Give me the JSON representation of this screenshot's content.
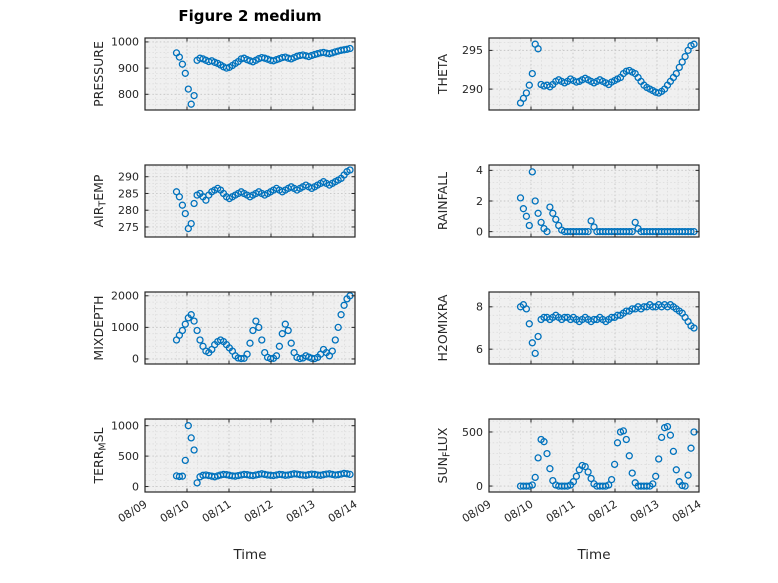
{
  "figure": {
    "title": "Figure 2 medium",
    "xlabel": "Time",
    "marker": "open-circle",
    "accent_color": "#0072BD",
    "text_color": "#262626",
    "grid_style": "dotted"
  },
  "x_axis": {
    "label": "Time",
    "range": [
      0,
      5
    ],
    "tick_labels": [
      "08/09",
      "08/10",
      "08/11",
      "08/12",
      "08/13",
      "08/14"
    ],
    "tick_values": [
      0,
      1,
      2,
      3,
      4,
      5
    ],
    "time_days_since_08_09": [
      0.75,
      0.82,
      0.89,
      0.96,
      1.03,
      1.1,
      1.17,
      1.24,
      1.31,
      1.38,
      1.45,
      1.52,
      1.59,
      1.66,
      1.73,
      1.8,
      1.87,
      1.94,
      2.01,
      2.08,
      2.15,
      2.22,
      2.29,
      2.36,
      2.43,
      2.5,
      2.57,
      2.64,
      2.71,
      2.78,
      2.85,
      2.92,
      2.99,
      3.06,
      3.13,
      3.2,
      3.27,
      3.34,
      3.41,
      3.48,
      3.55,
      3.62,
      3.69,
      3.76,
      3.83,
      3.9,
      3.97,
      4.04,
      4.11,
      4.18,
      4.25,
      4.32,
      4.39,
      4.46,
      4.53,
      4.6,
      4.67,
      4.74,
      4.81,
      4.88
    ]
  },
  "chart_data": [
    {
      "id": "pressure",
      "name": "PRESSURE",
      "type": "scatter",
      "col": 0,
      "row": 0,
      "ylabel_parts": [
        {
          "t": "PRESSURE"
        }
      ],
      "yticks": [
        800,
        900,
        1000
      ],
      "ylim": [
        740,
        1015
      ],
      "values": [
        958,
        942,
        915,
        880,
        820,
        762,
        795,
        930,
        938,
        935,
        930,
        925,
        928,
        922,
        918,
        912,
        905,
        900,
        903,
        910,
        918,
        925,
        935,
        938,
        932,
        928,
        924,
        930,
        936,
        940,
        938,
        934,
        930,
        928,
        932,
        936,
        940,
        942,
        938,
        935,
        940,
        945,
        948,
        950,
        947,
        944,
        948,
        952,
        955,
        958,
        960,
        957,
        955,
        958,
        962,
        965,
        968,
        970,
        972,
        975
      ]
    },
    {
      "id": "air-temp",
      "name": "AIR_TEMP",
      "type": "scatter",
      "col": 0,
      "row": 1,
      "ylabel_parts": [
        {
          "t": "AIR"
        },
        {
          "t": "T",
          "sub": true
        },
        {
          "t": "EMP"
        }
      ],
      "yticks": [
        275,
        280,
        285,
        290
      ],
      "ylim": [
        272,
        293.5
      ],
      "values": [
        285.5,
        284.0,
        281.5,
        279.0,
        274.5,
        276.0,
        282.0,
        284.5,
        285.0,
        284.0,
        283.0,
        284.5,
        285.5,
        286.0,
        286.5,
        286.0,
        285.0,
        284.0,
        283.5,
        284.0,
        284.5,
        285.0,
        285.5,
        285.0,
        284.5,
        284.0,
        284.5,
        285.0,
        285.5,
        285.0,
        284.5,
        285.0,
        285.5,
        286.0,
        286.5,
        286.0,
        285.5,
        286.0,
        286.5,
        287.0,
        286.5,
        286.0,
        286.5,
        287.0,
        287.5,
        287.0,
        286.5,
        287.0,
        287.5,
        288.0,
        288.5,
        288.0,
        287.5,
        288.0,
        288.5,
        289.0,
        289.5,
        290.5,
        291.5,
        292.0
      ]
    },
    {
      "id": "mixdepth",
      "name": "MIXDEPTH",
      "type": "scatter",
      "col": 0,
      "row": 2,
      "ylabel_parts": [
        {
          "t": "MIXDEPTH"
        }
      ],
      "yticks": [
        0,
        1000,
        2000
      ],
      "ylim": [
        -160,
        2120
      ],
      "values": [
        600,
        750,
        900,
        1100,
        1300,
        1400,
        1200,
        900,
        600,
        400,
        250,
        200,
        300,
        450,
        550,
        600,
        550,
        450,
        350,
        250,
        100,
        30,
        10,
        20,
        150,
        500,
        900,
        1200,
        1000,
        600,
        200,
        50,
        10,
        20,
        100,
        400,
        800,
        1100,
        900,
        500,
        200,
        50,
        10,
        30,
        100,
        60,
        20,
        10,
        50,
        150,
        300,
        200,
        100,
        250,
        600,
        1000,
        1400,
        1700,
        1900,
        2000
      ]
    },
    {
      "id": "terr-msl",
      "name": "TERR_MSL",
      "type": "scatter",
      "col": 0,
      "row": 3,
      "ylabel_parts": [
        {
          "t": "TERR"
        },
        {
          "t": "M",
          "sub": true
        },
        {
          "t": "SL"
        }
      ],
      "yticks": [
        0,
        500,
        1000
      ],
      "ylim": [
        -90,
        1110
      ],
      "values": [
        175,
        165,
        170,
        430,
        1000,
        800,
        600,
        60,
        160,
        185,
        190,
        180,
        170,
        160,
        175,
        190,
        200,
        195,
        185,
        175,
        170,
        180,
        190,
        200,
        195,
        185,
        180,
        190,
        200,
        210,
        200,
        190,
        185,
        180,
        190,
        200,
        195,
        185,
        190,
        200,
        210,
        205,
        195,
        190,
        185,
        195,
        205,
        200,
        190,
        185,
        195,
        205,
        210,
        200,
        190,
        195,
        205,
        215,
        210,
        200
      ]
    },
    {
      "id": "theta",
      "name": "THETA",
      "type": "scatter",
      "col": 1,
      "row": 0,
      "ylabel_parts": [
        {
          "t": "THETA"
        }
      ],
      "yticks": [
        290,
        295
      ],
      "ylim": [
        287.3,
        296.6
      ],
      "values": [
        288.2,
        288.8,
        289.5,
        290.5,
        292.0,
        295.8,
        295.2,
        290.6,
        290.4,
        290.5,
        290.3,
        290.6,
        291.0,
        291.2,
        291.0,
        290.8,
        291.0,
        291.3,
        291.1,
        290.9,
        291.0,
        291.2,
        291.4,
        291.2,
        291.0,
        290.8,
        291.0,
        291.2,
        291.0,
        290.8,
        290.6,
        290.9,
        291.1,
        291.3,
        291.5,
        292.0,
        292.3,
        292.4,
        292.2,
        292.0,
        291.5,
        291.0,
        290.5,
        290.2,
        290.0,
        289.8,
        289.6,
        289.5,
        289.7,
        290.0,
        290.5,
        291.0,
        291.5,
        292.0,
        292.8,
        293.5,
        294.2,
        295.0,
        295.6,
        295.8
      ]
    },
    {
      "id": "rainfall",
      "name": "RAINFALL",
      "type": "scatter",
      "col": 1,
      "row": 1,
      "yticks": [
        0,
        2,
        4
      ],
      "ylim": [
        -0.35,
        4.35
      ],
      "ylabel_parts": [
        {
          "t": "RAINFALL"
        }
      ],
      "values": [
        2.2,
        1.5,
        1.0,
        0.4,
        3.9,
        2.0,
        1.2,
        0.6,
        0.2,
        0,
        1.6,
        1.2,
        0.8,
        0.4,
        0.1,
        0,
        0,
        0,
        0,
        0,
        0,
        0,
        0,
        0,
        0.7,
        0.3,
        0,
        0,
        0,
        0,
        0,
        0,
        0,
        0,
        0,
        0,
        0,
        0,
        0,
        0.6,
        0.2,
        0,
        0,
        0,
        0,
        0,
        0,
        0,
        0,
        0,
        0,
        0,
        0,
        0,
        0,
        0,
        0,
        0,
        0,
        0
      ]
    },
    {
      "id": "h2omixra",
      "name": "H2OMIXRA",
      "type": "scatter",
      "col": 1,
      "row": 2,
      "ylabel_parts": [
        {
          "t": "H2OMIXRA"
        }
      ],
      "yticks": [
        6,
        8
      ],
      "ylim": [
        5.3,
        8.7
      ],
      "values": [
        8.0,
        8.1,
        7.9,
        7.2,
        6.3,
        5.8,
        6.6,
        7.4,
        7.5,
        7.5,
        7.4,
        7.5,
        7.6,
        7.5,
        7.4,
        7.5,
        7.5,
        7.4,
        7.5,
        7.4,
        7.3,
        7.4,
        7.5,
        7.4,
        7.3,
        7.4,
        7.4,
        7.5,
        7.4,
        7.3,
        7.4,
        7.5,
        7.5,
        7.6,
        7.6,
        7.7,
        7.8,
        7.8,
        7.9,
        7.9,
        8.0,
        7.9,
        8.0,
        8.0,
        8.1,
        8.0,
        8.0,
        8.1,
        8.0,
        8.1,
        8.0,
        8.1,
        8.0,
        7.9,
        7.8,
        7.7,
        7.5,
        7.3,
        7.1,
        7.0
      ]
    },
    {
      "id": "sun-flux",
      "name": "SUN_FLUX",
      "type": "scatter",
      "col": 1,
      "row": 3,
      "ylabel_parts": [
        {
          "t": "SUN"
        },
        {
          "t": "F",
          "sub": true
        },
        {
          "t": "LUX"
        }
      ],
      "yticks": [
        0,
        500
      ],
      "ylim": [
        -55,
        620
      ],
      "values": [
        0,
        0,
        0,
        0,
        10,
        80,
        260,
        430,
        410,
        300,
        160,
        50,
        10,
        0,
        0,
        0,
        0,
        10,
        40,
        90,
        150,
        190,
        180,
        130,
        70,
        20,
        0,
        0,
        0,
        0,
        10,
        60,
        200,
        400,
        500,
        510,
        430,
        280,
        120,
        30,
        0,
        0,
        0,
        0,
        0,
        20,
        90,
        250,
        450,
        540,
        550,
        470,
        320,
        150,
        40,
        5,
        0,
        100,
        350,
        500
      ]
    }
  ]
}
